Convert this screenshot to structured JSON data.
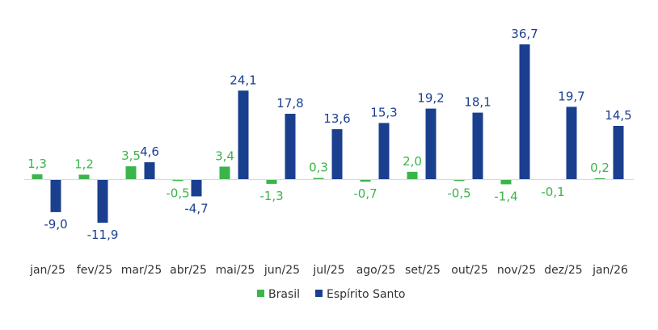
{
  "chart_data": {
    "type": "bar",
    "categories": [
      "jan/25",
      "fev/25",
      "mar/25",
      "abr/25",
      "mai/25",
      "jun/25",
      "jul/25",
      "ago/25",
      "set/25",
      "out/25",
      "nov/25",
      "dez/25",
      "jan/26"
    ],
    "series": [
      {
        "name": "Brasil",
        "color": "#3bb44a",
        "values": [
          1.3,
          1.2,
          3.5,
          -0.5,
          3.4,
          -1.3,
          0.3,
          -0.7,
          2.0,
          -0.5,
          -1.4,
          -0.1,
          0.2
        ],
        "labels": [
          "1,3",
          "1,2",
          "3,5",
          "-0,5",
          "3,4",
          "-1,3",
          "0,3",
          "-0,7",
          "2,0",
          "-0,5",
          "-1,4",
          "-0,1",
          "0,2"
        ]
      },
      {
        "name": "Espírito Santo",
        "color": "#1b3f8f",
        "values": [
          -9.0,
          -11.9,
          4.6,
          -4.7,
          24.1,
          17.8,
          13.6,
          15.3,
          19.2,
          18.1,
          36.7,
          19.7,
          14.5
        ],
        "labels": [
          "-9,0",
          "-11,9",
          "4,6",
          "-4,7",
          "24,1",
          "17,8",
          "13,6",
          "15,3",
          "19,2",
          "18,1",
          "36,7",
          "19,7",
          "14,5"
        ]
      }
    ],
    "title": "",
    "xlabel": "",
    "ylabel": "",
    "ylim": [
      -15,
      40
    ],
    "grid": false,
    "legend": "bottom"
  }
}
